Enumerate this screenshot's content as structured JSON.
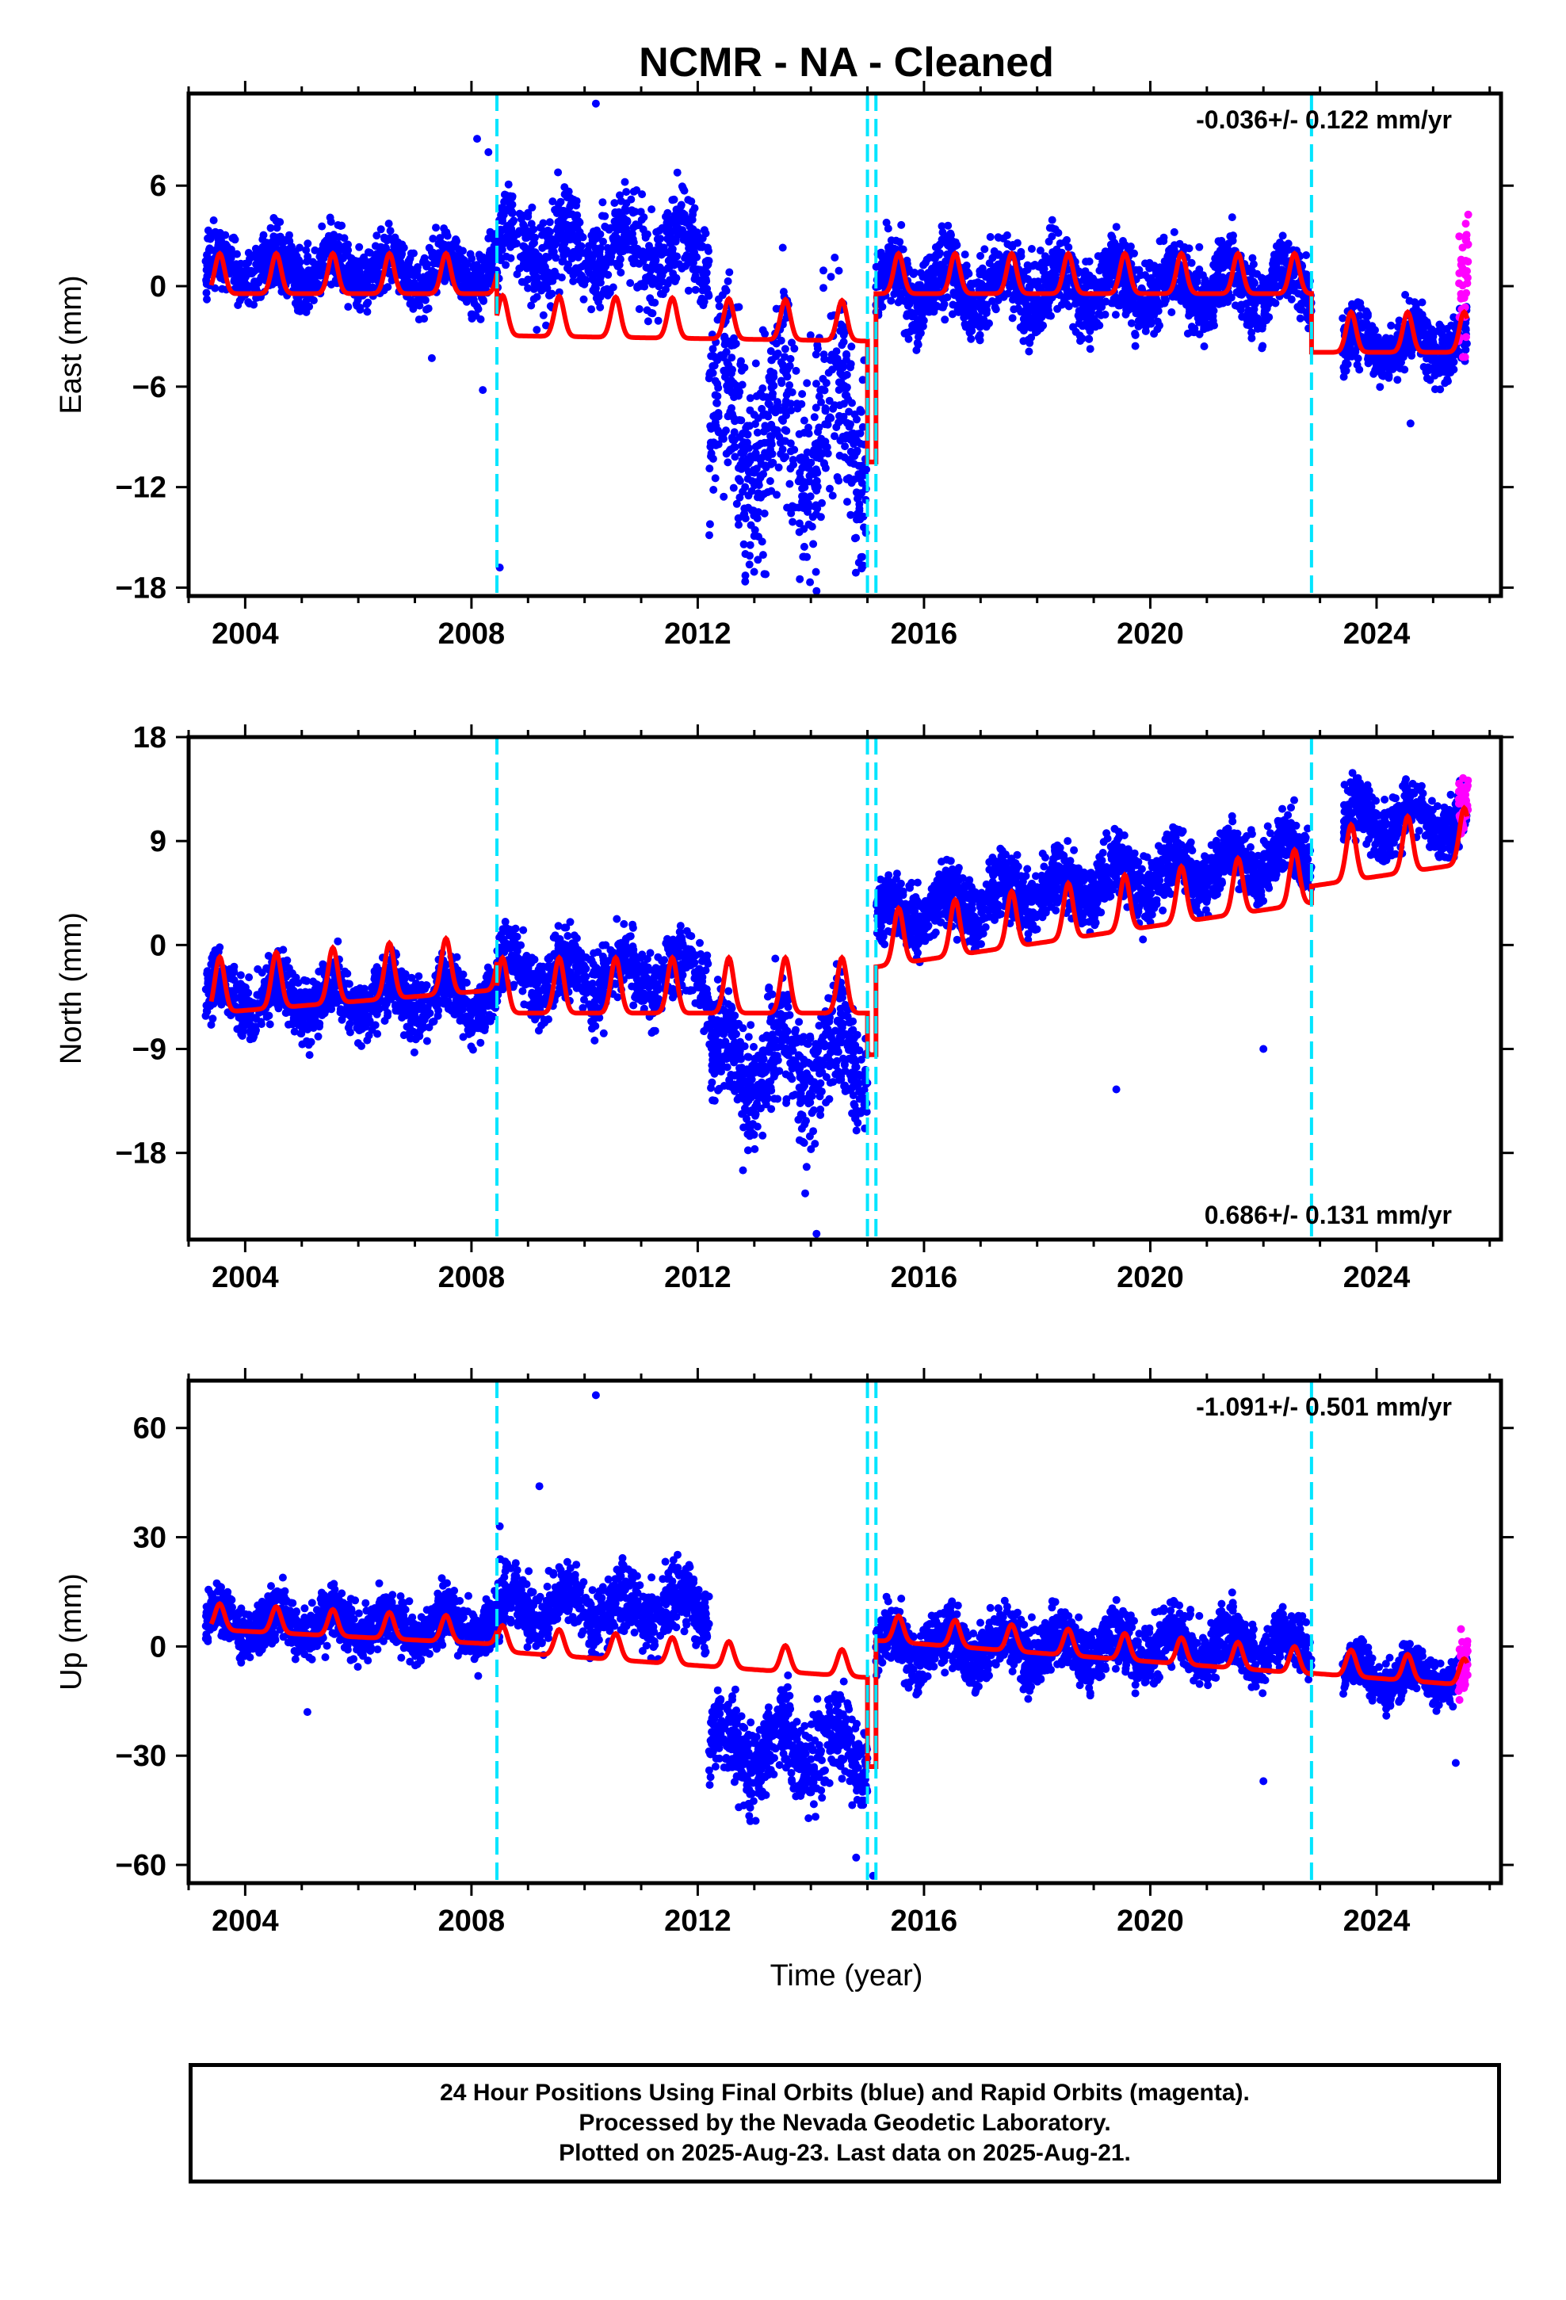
{
  "chart_data": {
    "title": "NCMR  - NA - Cleaned",
    "xlabel": "Time (year)",
    "x_ticks": [
      "2004",
      "2008",
      "2012",
      "2016",
      "2020",
      "2024"
    ],
    "xlim": [
      2003.0,
      2026.2
    ],
    "event_lines_x": [
      2008.45,
      2015.0,
      2015.15,
      2022.85
    ],
    "series_colors": {
      "final_orbits_points": "#0000ff",
      "rapid_orbits_points": "#ff00ff",
      "model_line": "#ff0000",
      "event_lines": "#00e5ff"
    },
    "panels": [
      {
        "id": "east",
        "type": "scatter",
        "ylabel": "East (mm)",
        "y_ticks": [
          "6",
          "0",
          "−6",
          "−12",
          "−18"
        ],
        "y_tick_values": [
          6,
          0,
          -6,
          -12,
          -18
        ],
        "ylim": [
          -18.5,
          11.5
        ],
        "rate_label": "-0.036+/- 0.122 mm/yr",
        "rate_position": "top-right",
        "model_segments": [
          {
            "x0": 2003.4,
            "x1": 2008.45,
            "offset": 0.0,
            "trend": 0.0,
            "amp": 1.5,
            "min": -99
          },
          {
            "x0": 2008.45,
            "x1": 2015.0,
            "offset": -2.5,
            "trend": -0.05,
            "amp": 1.5,
            "min": -99
          },
          {
            "x0": 2015.0,
            "x1": 2015.15,
            "offset": -10.5,
            "trend": 0.0,
            "amp": 0.0,
            "min": -99
          },
          {
            "x0": 2015.15,
            "x1": 2022.85,
            "offset": 0.0,
            "trend": 0.0,
            "amp": 1.5,
            "min": -99
          },
          {
            "x0": 2022.85,
            "x1": 2025.6,
            "offset": -3.5,
            "trend": 0.0,
            "amp": 1.5,
            "min": -99
          }
        ],
        "scatter_segments": [
          {
            "x0": 2003.3,
            "x1": 2008.45,
            "center": 1.0,
            "spread": 2.0,
            "density": 220
          },
          {
            "x0": 2008.45,
            "x1": 2012.2,
            "center": 2.2,
            "spread": 3.0,
            "density": 200
          },
          {
            "x0": 2012.2,
            "x1": 2015.0,
            "center": -8.5,
            "spread": 7.0,
            "density": 230
          },
          {
            "x0": 2015.15,
            "x1": 2022.85,
            "center": 0.0,
            "spread": 2.5,
            "density": 240
          },
          {
            "x0": 2023.4,
            "x1": 2025.6,
            "center": -3.5,
            "spread": 2.0,
            "density": 220
          }
        ],
        "rapid_points": {
          "x0": 2025.45,
          "x1": 2025.62,
          "center": 0.0,
          "spread": 4.0,
          "count": 40
        },
        "outliers": [
          [
            2008.1,
            8.8
          ],
          [
            2008.3,
            8.0
          ],
          [
            2008.5,
            -16.8
          ],
          [
            2010.2,
            10.9
          ],
          [
            2008.2,
            -6.2
          ],
          [
            2007.3,
            -4.3
          ],
          [
            2013.2,
            -17.2
          ],
          [
            2014.1,
            -18.2
          ],
          [
            2024.6,
            -8.2
          ]
        ]
      },
      {
        "id": "north",
        "type": "scatter",
        "ylabel": "North (mm)",
        "y_ticks": [
          "18",
          "9",
          "0",
          "−9",
          "−18"
        ],
        "y_tick_values": [
          18,
          9,
          0,
          -9,
          -18
        ],
        "ylim": [
          -25.5,
          18.0
        ],
        "rate_label": "0.686+/- 0.131 mm/yr",
        "rate_position": "bottom-right",
        "model_segments": [
          {
            "x0": 2003.4,
            "x1": 2008.45,
            "offset": -5.0,
            "trend": 0.4,
            "amp": 3.0,
            "min": -99
          },
          {
            "x0": 2008.45,
            "x1": 2015.0,
            "offset": -5.0,
            "trend": 0.0,
            "amp": 3.0,
            "min": -99
          },
          {
            "x0": 2015.0,
            "x1": 2015.15,
            "offset": -9.5,
            "trend": 0.0,
            "amp": 0.0,
            "min": -99
          },
          {
            "x0": 2015.15,
            "x1": 2022.85,
            "offset": -1.0,
            "trend": 0.72,
            "amp": 3.0,
            "min": -99
          },
          {
            "x0": 2022.85,
            "x1": 2025.6,
            "offset": 6.0,
            "trend": 0.72,
            "amp": 3.0,
            "min": -99
          }
        ],
        "scatter_segments": [
          {
            "x0": 2003.3,
            "x1": 2008.45,
            "center": -4.5,
            "spread": 3.0,
            "density": 220
          },
          {
            "x0": 2008.45,
            "x1": 2012.2,
            "center": -2.5,
            "spread": 3.5,
            "density": 200
          },
          {
            "x0": 2012.2,
            "x1": 2015.0,
            "center": -10.0,
            "spread": 5.5,
            "density": 230
          },
          {
            "x0": 2015.15,
            "x1": 2022.85,
            "center": 2.5,
            "spread": 3.0,
            "density": 240,
            "trend": 0.72
          },
          {
            "x0": 2023.4,
            "x1": 2025.6,
            "center": 11.0,
            "spread": 2.8,
            "density": 220
          }
        ],
        "rapid_points": {
          "x0": 2025.45,
          "x1": 2025.62,
          "center": 12.0,
          "spread": 2.5,
          "count": 40
        },
        "outliers": [
          [
            2012.8,
            -19.5
          ],
          [
            2013.9,
            -21.5
          ],
          [
            2014.1,
            -25.0
          ],
          [
            2022.0,
            -9.0
          ],
          [
            2019.4,
            -12.5
          ]
        ]
      },
      {
        "id": "up",
        "type": "scatter",
        "ylabel": "Up (mm)",
        "y_ticks": [
          "60",
          "30",
          "0",
          "−30",
          "−60"
        ],
        "y_tick_values": [
          60,
          30,
          0,
          -30,
          -60
        ],
        "ylim": [
          -65,
          73
        ],
        "rate_label": "-1.091+/- 0.501 mm/yr",
        "rate_position": "top-right",
        "model_segments": [
          {
            "x0": 2003.4,
            "x1": 2008.45,
            "offset": 6.0,
            "trend": -0.8,
            "amp": 4.5,
            "min": -99
          },
          {
            "x0": 2008.45,
            "x1": 2015.0,
            "offset": 0.0,
            "trend": -1.1,
            "amp": 4.5,
            "min": -99
          },
          {
            "x0": 2015.0,
            "x1": 2015.15,
            "offset": -33.0,
            "trend": 0.0,
            "amp": 0.0,
            "min": -99
          },
          {
            "x0": 2015.15,
            "x1": 2022.85,
            "offset": 3.0,
            "trend": -1.2,
            "amp": 4.5,
            "min": -99
          },
          {
            "x0": 2022.85,
            "x1": 2025.6,
            "offset": -6.0,
            "trend": -1.2,
            "amp": 4.5,
            "min": -99
          }
        ],
        "scatter_segments": [
          {
            "x0": 2003.3,
            "x1": 2008.45,
            "center": 6.0,
            "spread": 8.0,
            "density": 220
          },
          {
            "x0": 2008.45,
            "x1": 2012.2,
            "center": 11.0,
            "spread": 10.0,
            "density": 200
          },
          {
            "x0": 2012.2,
            "x1": 2015.0,
            "center": -28.0,
            "spread": 13.0,
            "density": 230
          },
          {
            "x0": 2015.15,
            "x1": 2022.85,
            "center": 0.0,
            "spread": 9.0,
            "density": 240
          },
          {
            "x0": 2023.4,
            "x1": 2025.6,
            "center": -8.0,
            "spread": 7.0,
            "density": 220
          }
        ],
        "rapid_points": {
          "x0": 2025.45,
          "x1": 2025.62,
          "center": -5.0,
          "spread": 8.0,
          "count": 40
        },
        "outliers": [
          [
            2010.2,
            69.0
          ],
          [
            2009.2,
            44.0
          ],
          [
            2008.5,
            33.0
          ],
          [
            2015.1,
            -63.0
          ],
          [
            2022.0,
            -37.0
          ],
          [
            2014.8,
            -58.0
          ],
          [
            2005.1,
            -18.0
          ],
          [
            2025.4,
            -32.0
          ]
        ]
      }
    ]
  },
  "footer": {
    "line1": "24 Hour Positions Using Final Orbits (blue) and Rapid Orbits (magenta).",
    "line2": "Processed by the Nevada Geodetic Laboratory.",
    "line3": "Plotted on 2025-Aug-23. Last data on 2025-Aug-21."
  }
}
